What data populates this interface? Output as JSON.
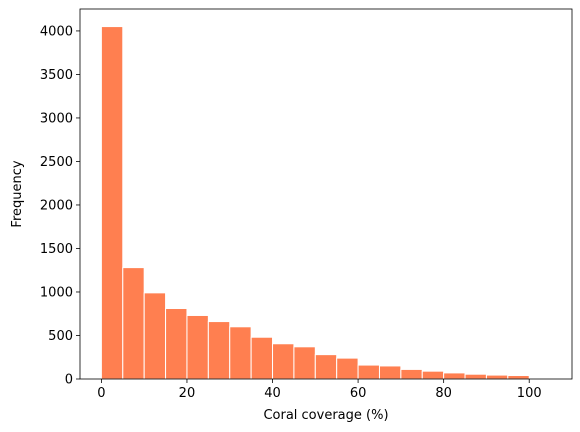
{
  "chart_data": {
    "type": "bar",
    "title": "",
    "xlabel": "Coral coverage (%)",
    "ylabel": "Frequency",
    "bin_edges": [
      0,
      5,
      10,
      15,
      20,
      25,
      30,
      35,
      40,
      45,
      50,
      55,
      60,
      65,
      70,
      75,
      80,
      85,
      90,
      95,
      100,
      105
    ],
    "values": [
      4050,
      1280,
      990,
      810,
      730,
      660,
      600,
      480,
      405,
      370,
      280,
      240,
      160,
      150,
      110,
      90,
      70,
      55,
      45,
      40,
      0
    ],
    "xlim": [
      -5,
      110
    ],
    "ylim": [
      0,
      4252
    ],
    "xticks": [
      0,
      20,
      40,
      60,
      80,
      100
    ],
    "yticks": [
      0,
      500,
      1000,
      1500,
      2000,
      2500,
      3000,
      3500,
      4000
    ],
    "bar_color": "#ff7f50",
    "edge_color": "#ffffff",
    "grid": false,
    "legend": "none"
  }
}
